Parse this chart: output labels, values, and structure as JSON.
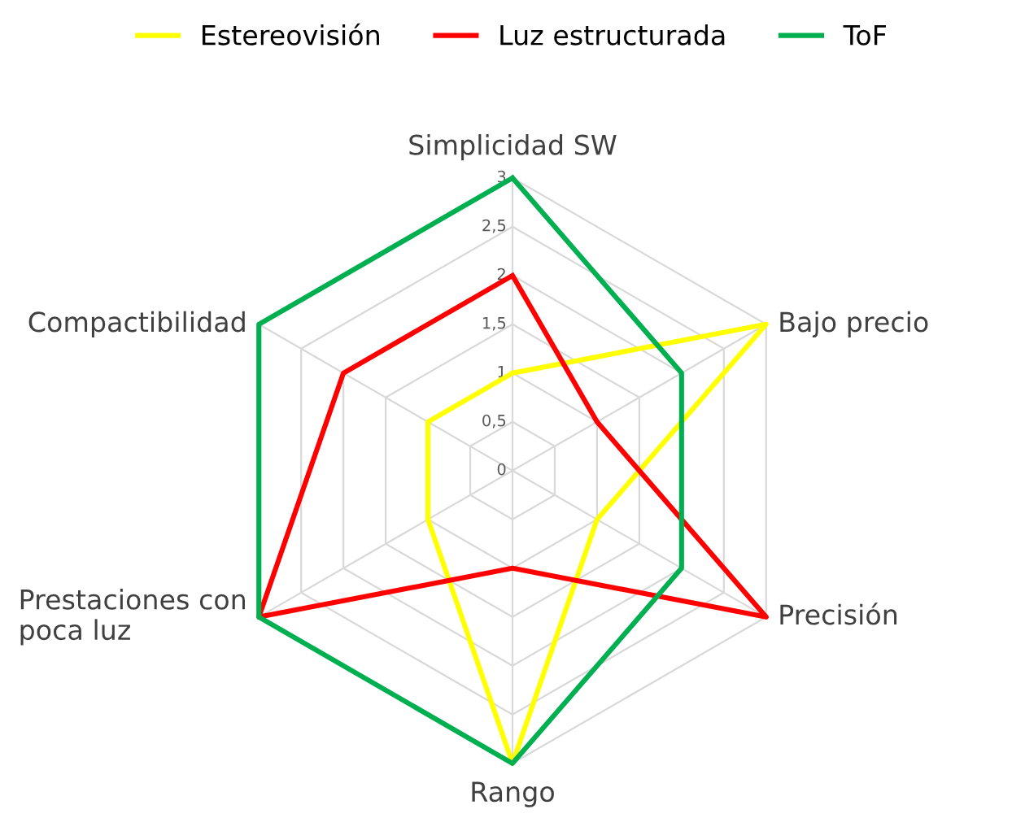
{
  "chart_data": {
    "type": "radar",
    "categories": [
      "Simplicidad SW",
      "Bajo precio",
      "Precisión",
      "Rango",
      "Prestaciones con\npoca luz",
      "Compactibilidad"
    ],
    "series": [
      {
        "name": "Estereovisión",
        "color": "#ffff00",
        "values": [
          1,
          3,
          1,
          3,
          1,
          1
        ]
      },
      {
        "name": "Luz estructurada",
        "color": "#ff0000",
        "values": [
          2,
          1,
          3,
          1,
          3,
          2
        ]
      },
      {
        "name": "ToF",
        "color": "#00b050",
        "values": [
          3,
          2,
          2,
          3,
          3,
          3
        ]
      }
    ],
    "ylim": [
      0,
      3
    ],
    "yticks": [
      0,
      {
        "value": 0.5,
        "label": "0,5"
      },
      1,
      {
        "value": 1.5,
        "label": "1,5"
      },
      2,
      {
        "value": 2.5,
        "label": "2,5"
      },
      3
    ],
    "grid": true,
    "legend": "top",
    "marker": "none",
    "line_style": "solid"
  }
}
